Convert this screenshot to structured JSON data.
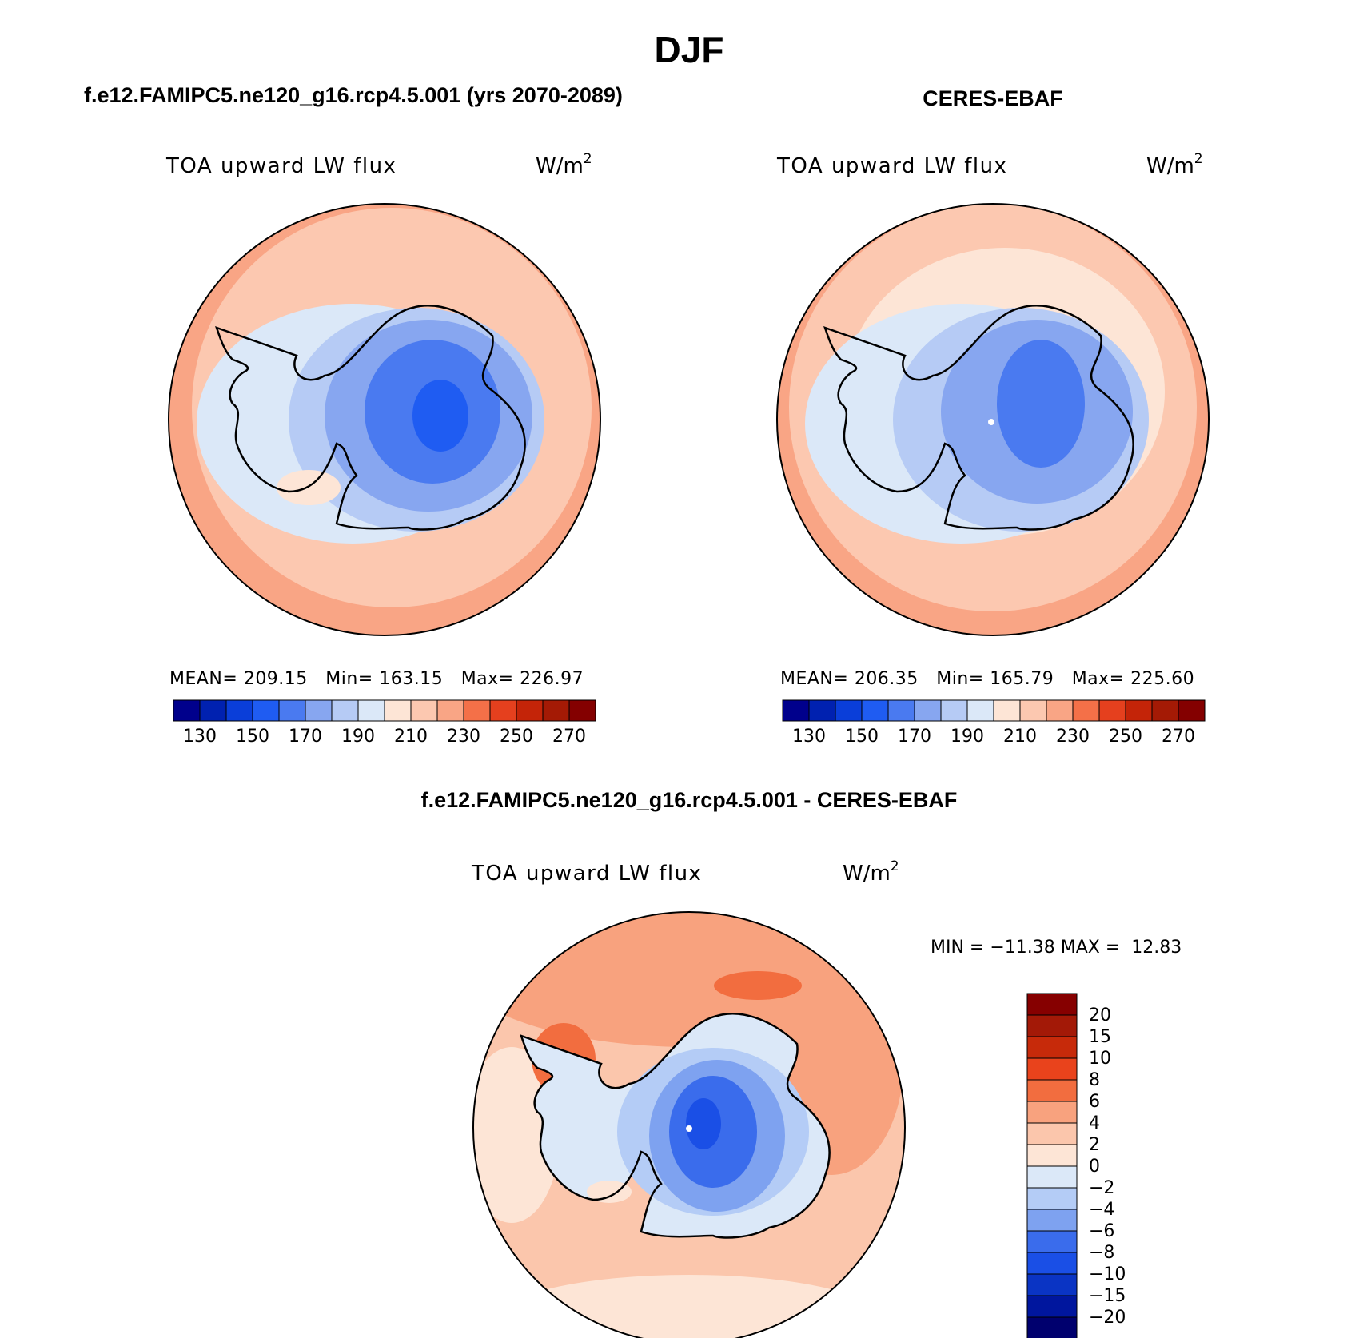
{
  "title": "DJF",
  "colors": {
    "abs_scale": [
      "#00008c",
      "#0021b0",
      "#0a3ed9",
      "#1f5cf2",
      "#4a7af0",
      "#87a6f0",
      "#b6cbf5",
      "#dbe8f8",
      "#fde5d6",
      "#fcc8b0",
      "#f9a585",
      "#f47048",
      "#e5401e",
      "#c42408",
      "#a41a05",
      "#840000"
    ],
    "diff_scale": [
      "#00006e",
      "#00169e",
      "#0a34c4",
      "#1a4fe6",
      "#3a6cec",
      "#7ea2f0",
      "#b4ccf6",
      "#dbe8f8",
      "#fde5d6",
      "#fbc6ac",
      "#f8a27e",
      "#f26d3f",
      "#e9431c",
      "#c72a0a",
      "#a31907",
      "#860000"
    ]
  },
  "panels": [
    {
      "name": "model",
      "title": "f.e12.FAMIPC5.ne120_g16.rcp4.5.001 (yrs 2070-2089)",
      "variable": "TOA upward LW flux",
      "units": "W/m",
      "units_sup": "2",
      "stats": "MEAN= 209.15   Min= 163.15   Max= 226.97",
      "colorbar_labels": [
        "130",
        "150",
        "170",
        "190",
        "210",
        "230",
        "250",
        "270"
      ]
    },
    {
      "name": "obs",
      "title": "CERES-EBAF",
      "variable": "TOA upward LW flux",
      "units": "W/m",
      "units_sup": "2",
      "stats": "MEAN= 206.35   Min= 165.79   Max= 225.60",
      "colorbar_labels": [
        "130",
        "150",
        "170",
        "190",
        "210",
        "230",
        "250",
        "270"
      ]
    },
    {
      "name": "diff",
      "title": "f.e12.FAMIPC5.ne120_g16.rcp4.5.001 - CERES-EBAF",
      "variable": "TOA upward LW flux",
      "units": "W/m",
      "units_sup": "2",
      "stats": "MIN = −11.38 MAX =  12.83",
      "colorbar_labels": [
        "20",
        "15",
        "10",
        "8",
        "6",
        "4",
        "2",
        "0",
        "−2",
        "−4",
        "−6",
        "−8",
        "−10",
        "−15",
        "−20"
      ]
    }
  ]
}
